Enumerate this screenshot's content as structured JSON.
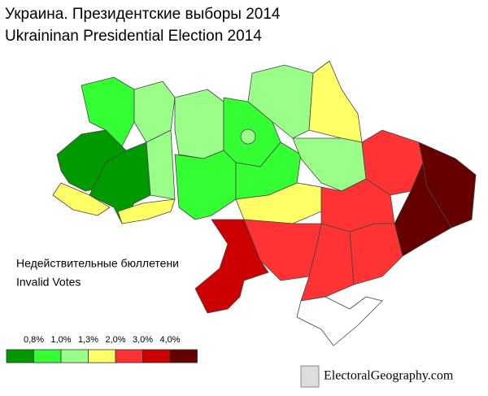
{
  "header": {
    "title": "Украина. Президентские выборы 2014",
    "subtitle": "Ukraininan Presidential Election 2014"
  },
  "map": {
    "caption_ru": "Недействительные бюллетени",
    "caption_en": "Invalid Votes"
  },
  "legend": {
    "labels": [
      "0,8%",
      "1,0%",
      "1,3%",
      "2,0%",
      "3,0%",
      "4,0%"
    ],
    "colors": [
      "#009900",
      "#33ff33",
      "#99ff88",
      "#ffff66",
      "#ff3333",
      "#cc0000",
      "#660000"
    ]
  },
  "footer": {
    "watermark": "ElectoralGeography.com"
  }
}
